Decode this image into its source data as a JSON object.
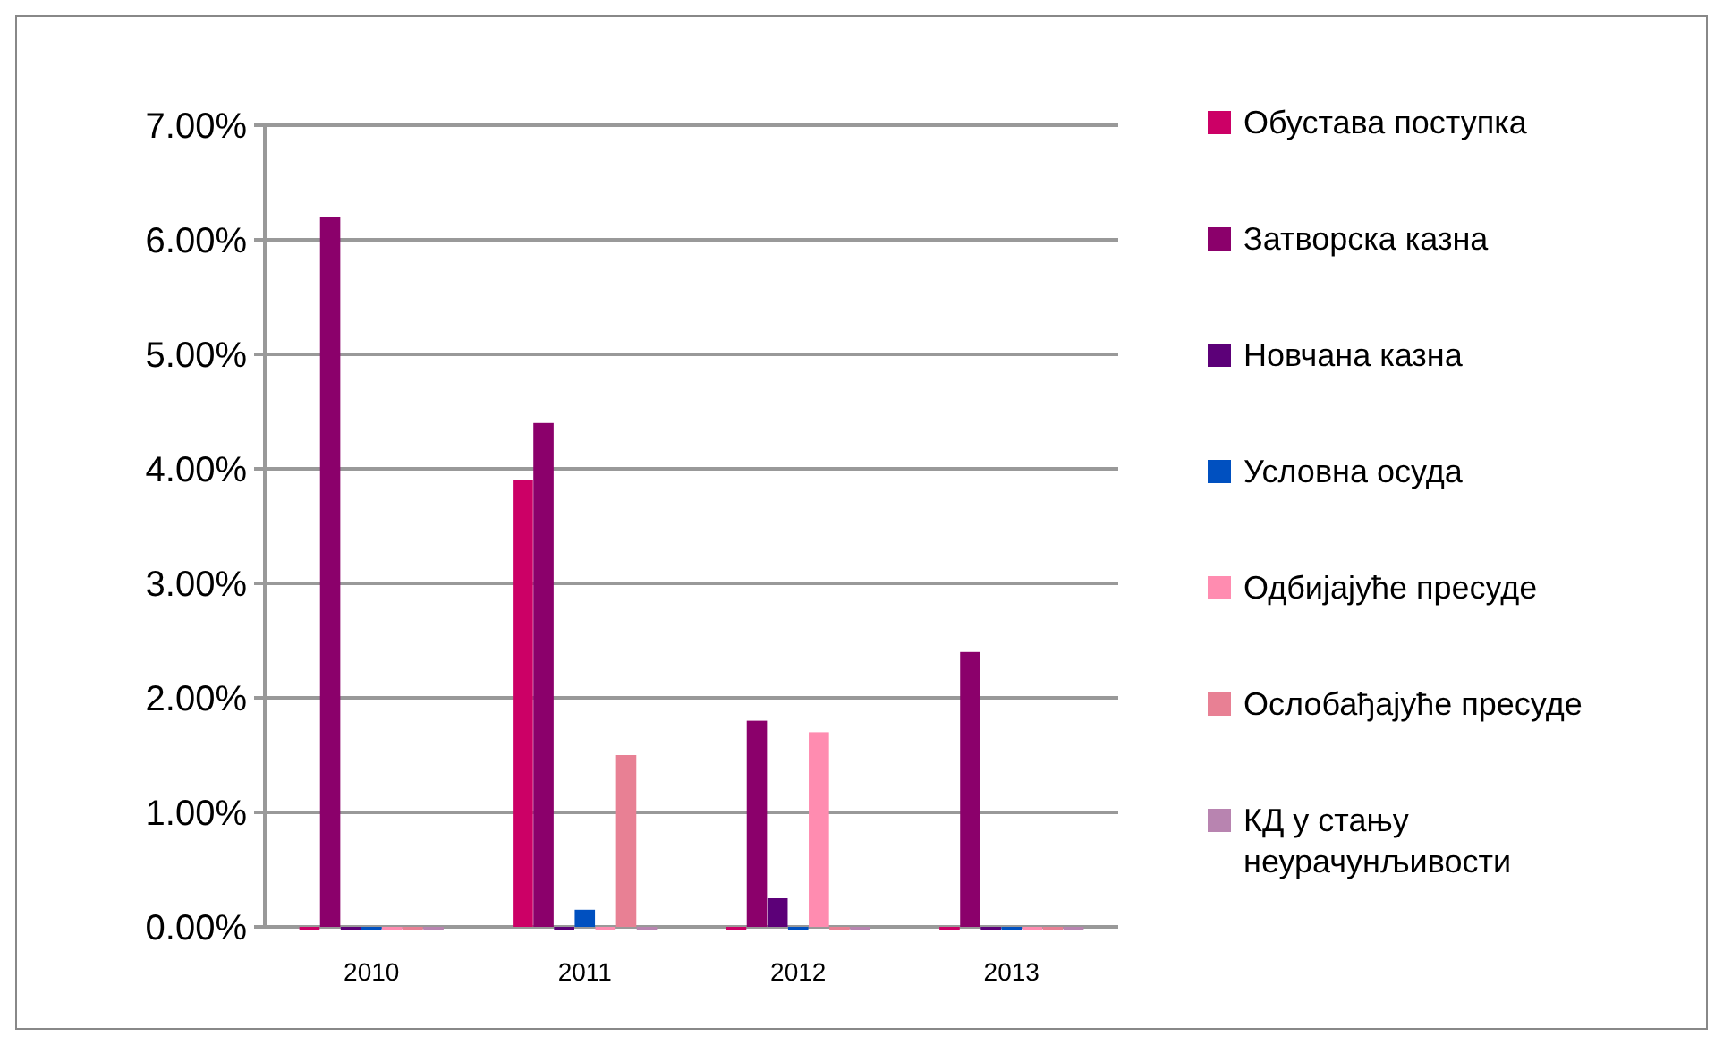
{
  "chart_data": {
    "type": "bar",
    "categories": [
      "2010",
      "2011",
      "2012",
      "2013"
    ],
    "series": [
      {
        "name": "Обустава поступка",
        "color": "#cc0066",
        "values": [
          0,
          3.9,
          0,
          0
        ]
      },
      {
        "name": "Затворска казна",
        "color": "#8b006b",
        "values": [
          6.2,
          4.4,
          1.8,
          2.4
        ]
      },
      {
        "name": "Новчана казна",
        "color": "#5c0078",
        "values": [
          0,
          0,
          0.25,
          0
        ]
      },
      {
        "name": "Условна осуда",
        "color": "#0050c0",
        "values": [
          0,
          0.15,
          0,
          0
        ]
      },
      {
        "name": "Одбијајуће пресуде",
        "color": "#ff8cb0",
        "values": [
          0,
          0,
          1.7,
          0
        ]
      },
      {
        "name": "Ослобађајуће пресуде",
        "color": "#e88094",
        "values": [
          0,
          1.5,
          0,
          0
        ]
      },
      {
        "name": "КД у стању неурачунљивости",
        "color": "#b884b0",
        "values": [
          0,
          0,
          0,
          0
        ]
      }
    ],
    "ylim": [
      0,
      7
    ],
    "yticks": [
      {
        "value": 0,
        "label": "0.00%"
      },
      {
        "value": 1,
        "label": "1.00%"
      },
      {
        "value": 2,
        "label": "2.00%"
      },
      {
        "value": 3,
        "label": "3.00%"
      },
      {
        "value": 4,
        "label": "4.00%"
      },
      {
        "value": 5,
        "label": "5.00%"
      },
      {
        "value": 6,
        "label": "6.00%"
      },
      {
        "value": 7,
        "label": "7.00%"
      }
    ],
    "grid": "y",
    "legend": "right"
  }
}
